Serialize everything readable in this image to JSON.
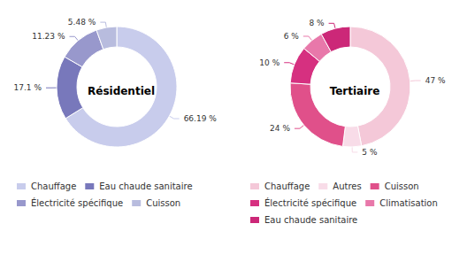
{
  "chart_data": [
    {
      "type": "donut",
      "title": "Résidentiel",
      "categories": [
        "Chauffage",
        "Eau chaude sanitaire",
        "Électricité spécifique",
        "Cuisson"
      ],
      "values": [
        66.19,
        17.1,
        11.23,
        5.48
      ],
      "value_labels": [
        "66.19 %",
        "17.1 %",
        "11.23 %",
        "5.48 %"
      ],
      "colors": [
        "#c8ccec",
        "#7878bb",
        "#9898cc",
        "#b8bcde"
      ],
      "data_labels": true,
      "legend": "bottom"
    },
    {
      "type": "donut",
      "title": "Tertiaire",
      "categories": [
        "Chauffage",
        "Autres",
        "Cuisson",
        "Électricité spécifique",
        "Climatisation",
        "Eau chaude sanitaire"
      ],
      "values": [
        47,
        5,
        24,
        10,
        6,
        8
      ],
      "value_labels": [
        "47 %",
        "5 %",
        "24 %",
        "10 %",
        "6 %",
        "8 %"
      ],
      "colors": [
        "#f4c8d8",
        "#f8dce8",
        "#e0508a",
        "#d63080",
        "#e878aa",
        "#cc2878"
      ],
      "data_labels": true,
      "legend": "bottom"
    }
  ]
}
